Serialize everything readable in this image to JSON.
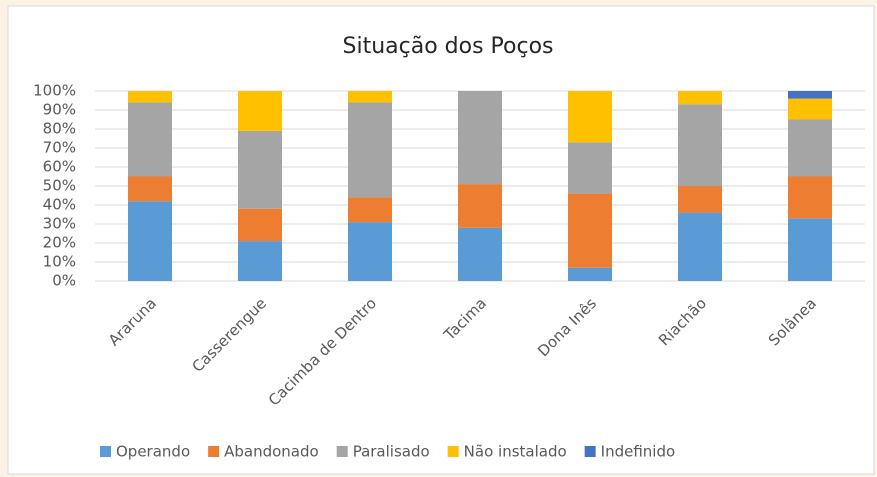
{
  "chart_data": {
    "type": "stacked_bar",
    "title": "Situação dos Poços",
    "categories": [
      "Araruna",
      "Casserengue",
      "Cacimba de Dentro",
      "Tacima",
      "Dona Inês",
      "Riachão",
      "Solânea"
    ],
    "series": [
      {
        "name": "Operando",
        "color": "#5b9bd5",
        "values": [
          42,
          21,
          31,
          28,
          7,
          36,
          33
        ]
      },
      {
        "name": "Abandonado",
        "color": "#ed7d31",
        "values": [
          13,
          17,
          13,
          23,
          39,
          14,
          22
        ]
      },
      {
        "name": "Paralisado",
        "color": "#a5a5a5",
        "values": [
          39,
          41,
          50,
          49,
          27,
          43,
          30
        ]
      },
      {
        "name": "Não instalado",
        "color": "#ffc000",
        "values": [
          6,
          21,
          6,
          0,
          27,
          7,
          11
        ]
      },
      {
        "name": "Indefinido",
        "color": "#4472c4",
        "values": [
          0,
          0,
          0,
          0,
          0,
          0,
          4
        ]
      }
    ],
    "ylim": [
      0,
      100
    ],
    "yticks": [
      {
        "value": 0,
        "label": "0%"
      },
      {
        "value": 10,
        "label": "10%"
      },
      {
        "value": 20,
        "label": "20%"
      },
      {
        "value": 30,
        "label": "30%"
      },
      {
        "value": 40,
        "label": "40%"
      },
      {
        "value": 50,
        "label": "50%"
      },
      {
        "value": 60,
        "label": "60%"
      },
      {
        "value": 70,
        "label": "70%"
      },
      {
        "value": 80,
        "label": "80%"
      },
      {
        "value": 90,
        "label": "90%"
      },
      {
        "value": 100,
        "label": "100%"
      }
    ],
    "grid": true,
    "legend": "bottom"
  }
}
